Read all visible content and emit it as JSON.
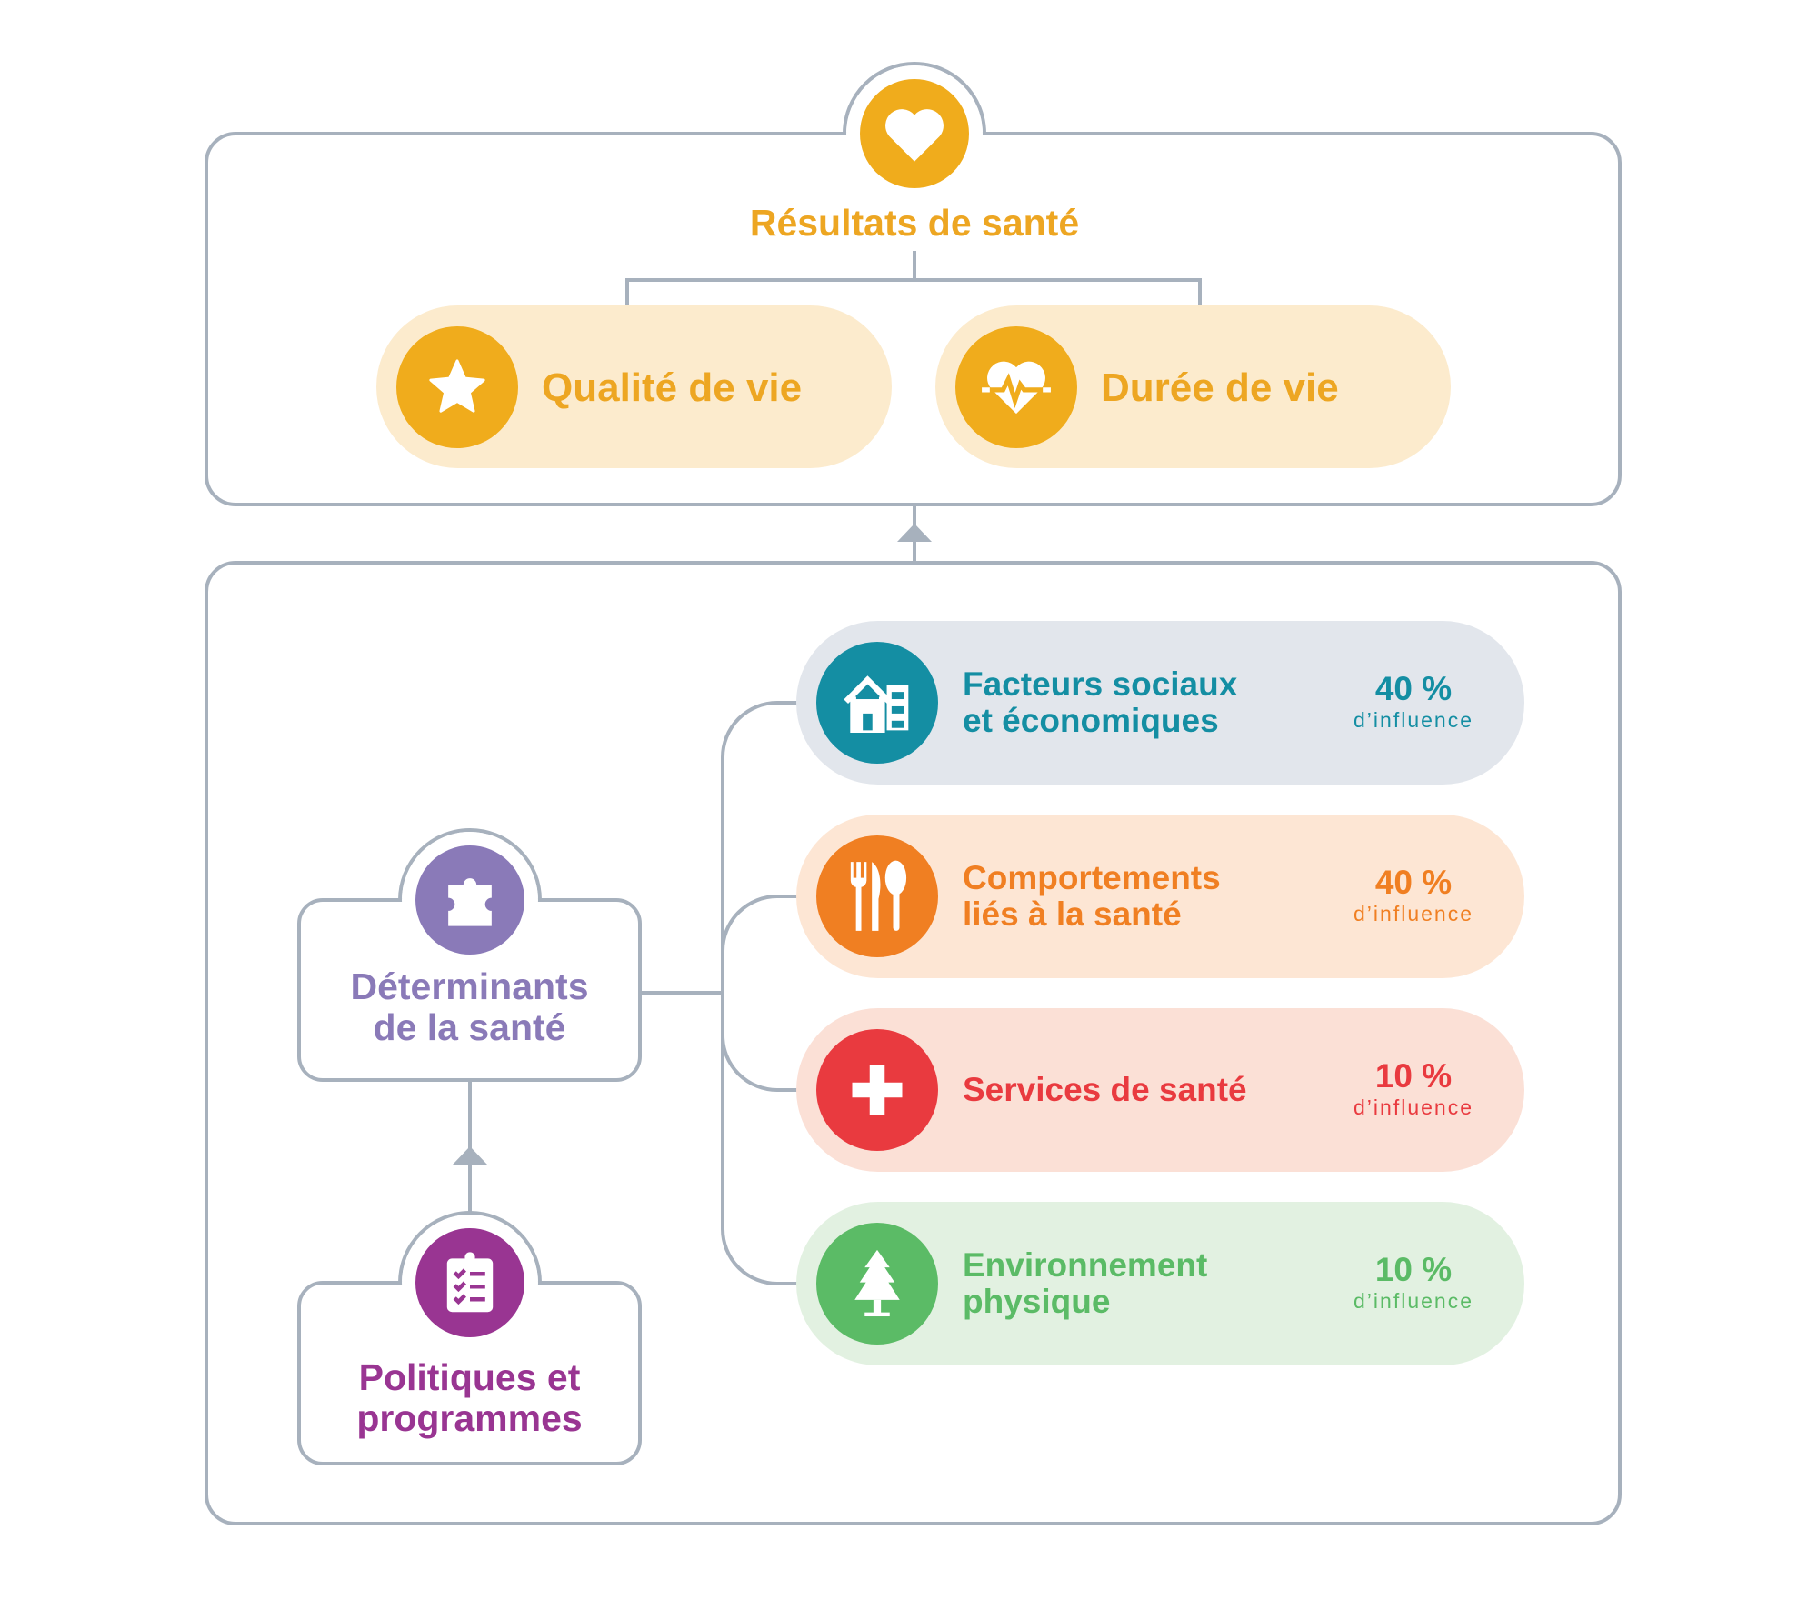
{
  "outcomes": {
    "title": "Résultats de santé",
    "icon": "heart-icon",
    "items": [
      {
        "label": "Qualité de vie",
        "icon": "star-icon"
      },
      {
        "label": "Durée de vie",
        "icon": "heart-pulse-icon"
      }
    ]
  },
  "determinants": {
    "title_line1": "Déterminants",
    "title_line2": "de la santé",
    "icon": "puzzle-icon",
    "color": "#8a7ab8"
  },
  "policies": {
    "title_line1": "Politiques et",
    "title_line2": "programmes",
    "icon": "clipboard-checklist-icon",
    "color": "#993592"
  },
  "factors": [
    {
      "line1": "Facteurs sociaux",
      "line2": "et économiques",
      "value": "40 %",
      "caption": "d’influence",
      "icon": "house-building-icon",
      "color": "#148ea3",
      "bg": "#e2e6ec"
    },
    {
      "line1": "Comportements",
      "line2": "liés à la santé",
      "value": "40 %",
      "caption": "d’influence",
      "icon": "cutlery-icon",
      "color": "#f07f22",
      "bg": "#fde6d4"
    },
    {
      "line1": "Services de santé",
      "line2": "",
      "value": "10 %",
      "caption": "d’influence",
      "icon": "medical-cross-icon",
      "color": "#e93a3f",
      "bg": "#fbe0d6"
    },
    {
      "line1": "Environnement",
      "line2": "physique",
      "value": "10 %",
      "caption": "d’influence",
      "icon": "tree-icon",
      "color": "#5bbb66",
      "bg": "#e2f1e1"
    }
  ],
  "colors": {
    "gold": "#f0ac1c",
    "gold_bg": "#fcebcd",
    "line": "#a7b1bd"
  }
}
